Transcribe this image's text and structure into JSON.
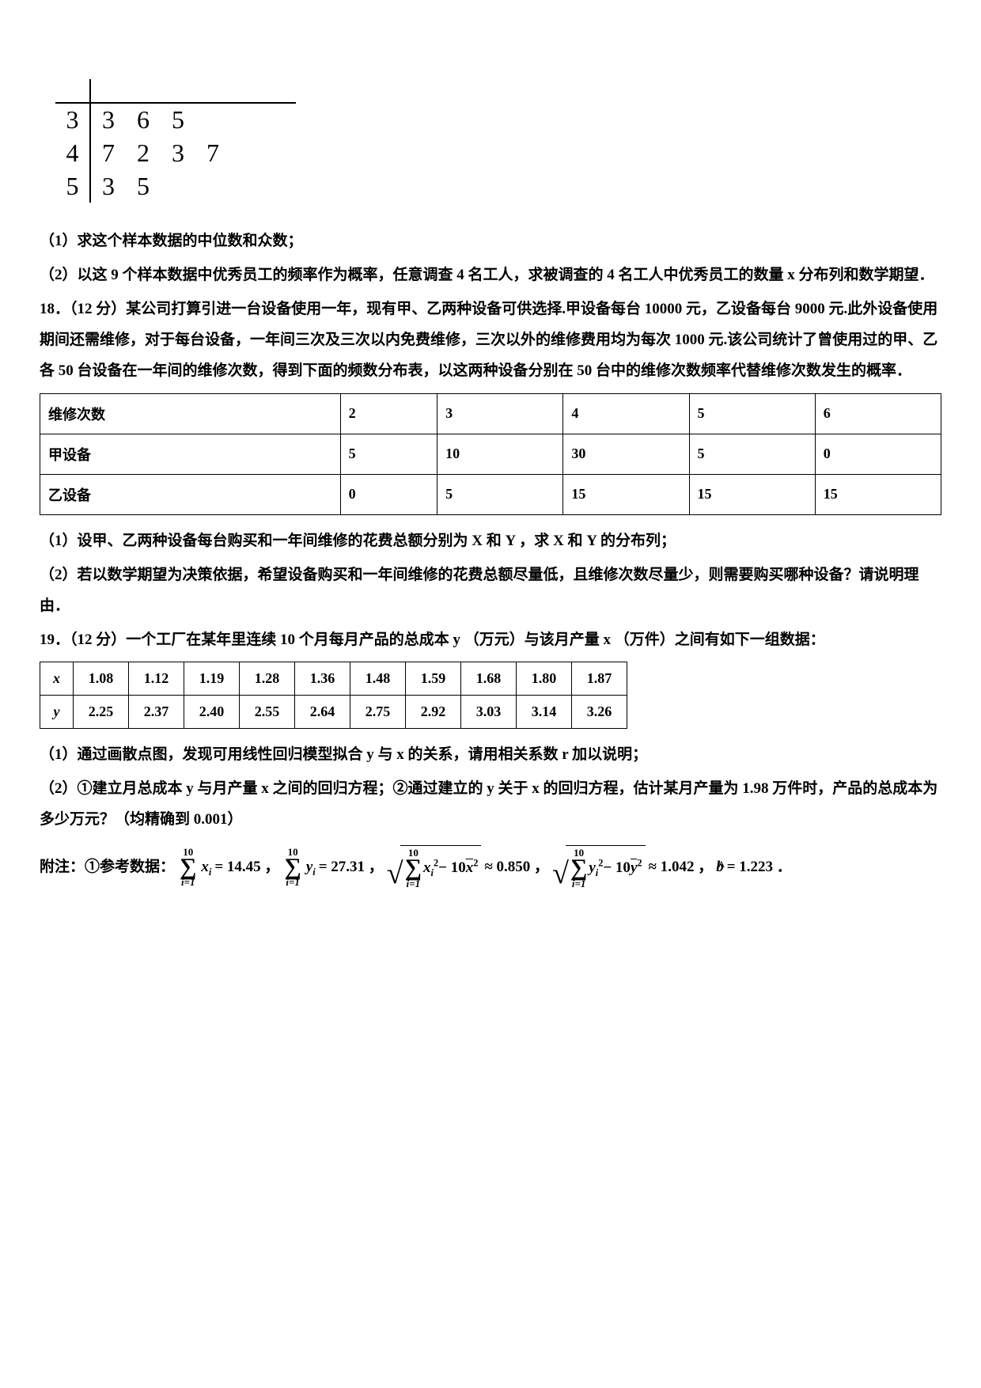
{
  "stemleaf": {
    "rows": [
      {
        "stem": "3",
        "leaf": "3 6 5"
      },
      {
        "stem": "4",
        "leaf": "7 2 3 7"
      },
      {
        "stem": "5",
        "leaf": "3 5"
      }
    ]
  },
  "q17": {
    "part1": "（1）求这个样本数据的中位数和众数；",
    "part2": "（2）以这 9 个样本数据中优秀员工的频率作为概率，任意调查 4 名工人，求被调查的 4 名工人中优秀员工的数量 x 分布列和数学期望．"
  },
  "q18": {
    "stem1": "18．（12 分）某公司打算引进一台设备使用一年，现有甲、乙两种设备可供选择.甲设备每台 10000 元，乙设备每台 9000 元.此外设备使用期间还需维修，对于每台设备，一年间三次及三次以内免费维修，三次以外的维修费用均为每次 1000 元.该公司统计了曾使用过的甲、乙各 50 台设备在一年间的维修次数，得到下面的频数分布表，以这两种设备分别在 50 台中的维修次数频率代替维修次数发生的概率．",
    "table": {
      "header": [
        "维修次数",
        "2",
        "3",
        "4",
        "5",
        "6"
      ],
      "row1": [
        "甲设备",
        "5",
        "10",
        "30",
        "5",
        "0"
      ],
      "row2": [
        "乙设备",
        "0",
        "5",
        "15",
        "15",
        "15"
      ]
    },
    "part1": "（1）设甲、乙两种设备每台购买和一年间维修的花费总额分别为 X 和 Y ，求 X 和 Y 的分布列；",
    "part2": "（2）若以数学期望为决策依据，希望设备购买和一年间维修的花费总额尽量低，且维修次数尽量少，则需要购买哪种设备？请说明理由．"
  },
  "q19": {
    "stem": "19．（12 分）一个工厂在某年里连续 10 个月每月产品的总成本 y （万元）与该月产量 x （万件）之间有如下一组数据：",
    "table": {
      "xlabel": "x",
      "ylabel": "y",
      "x": [
        "1.08",
        "1.12",
        "1.19",
        "1.28",
        "1.36",
        "1.48",
        "1.59",
        "1.68",
        "1.80",
        "1.87"
      ],
      "y": [
        "2.25",
        "2.37",
        "2.40",
        "2.55",
        "2.64",
        "2.75",
        "2.92",
        "3.03",
        "3.14",
        "3.26"
      ]
    },
    "part1": "（1）通过画散点图，发现可用线性回归模型拟合 y 与 x 的关系，请用相关系数 r 加以说明；",
    "part2": "（2）①建立月总成本 y 与月产量 x 之间的回归方程；②通过建立的 y 关于 x 的回归方程，估计某月产量为 1.98 万件时，产品的总成本为多少万元？（均精确到 0.001）",
    "appendix_label": "附注：①参考数据：",
    "formulas": {
      "sumx_lhs": "x",
      "sumx_rhs": "= 14.45 ，",
      "sumy_lhs": "y",
      "sumy_rhs": "= 27.31 ，",
      "sqrt1_inner_a": "x",
      "sqrt1_inner_b": "− 10",
      "sqrt1_xbar": "x",
      "sqrt1_rhs": "≈ 0.850 ，",
      "sqrt2_inner_a": "y",
      "sqrt2_inner_b": "− 10",
      "sqrt2_ybar": "y",
      "sqrt2_rhs": "≈ 1.042 ，",
      "bhat": "b",
      "bhat_rhs": "= 1.223 ．",
      "upper": "10",
      "lower": "i=1"
    }
  }
}
